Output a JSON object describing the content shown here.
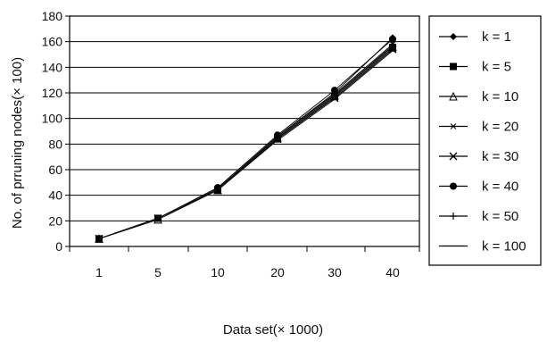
{
  "chart_data": {
    "type": "line",
    "title": "",
    "xlabel": "Data  set(× 1000)",
    "ylabel": "No. of prruning nodes(× 100)",
    "categories": [
      "1",
      "5",
      "10",
      "20",
      "30",
      "40"
    ],
    "ylim": [
      0,
      180
    ],
    "yticks": [
      0,
      20,
      40,
      60,
      80,
      100,
      120,
      140,
      160,
      180
    ],
    "grid": "horizontal",
    "legend": "right",
    "series": [
      {
        "name": "k = 1",
        "marker": "diamond",
        "values": [
          6,
          22,
          45,
          86,
          120,
          163
        ]
      },
      {
        "name": "k = 5",
        "marker": "square",
        "values": [
          6,
          22,
          44,
          84,
          117,
          155
        ]
      },
      {
        "name": "k = 10",
        "marker": "triangle",
        "values": [
          6,
          21,
          44,
          85,
          118,
          156
        ]
      },
      {
        "name": "k = 20",
        "marker": "star",
        "values": [
          6,
          22,
          45,
          86,
          119,
          158
        ]
      },
      {
        "name": "k = 30",
        "marker": "x",
        "values": [
          6,
          22,
          44,
          84,
          116,
          154
        ]
      },
      {
        "name": "k = 40",
        "marker": "circle",
        "values": [
          6,
          22,
          46,
          87,
          122,
          162
        ]
      },
      {
        "name": "k = 50",
        "marker": "plus",
        "values": [
          6,
          22,
          45,
          85,
          118,
          157
        ]
      },
      {
        "name": "k = 100",
        "marker": "none",
        "values": [
          6,
          22,
          44,
          83,
          115,
          153
        ]
      }
    ]
  }
}
